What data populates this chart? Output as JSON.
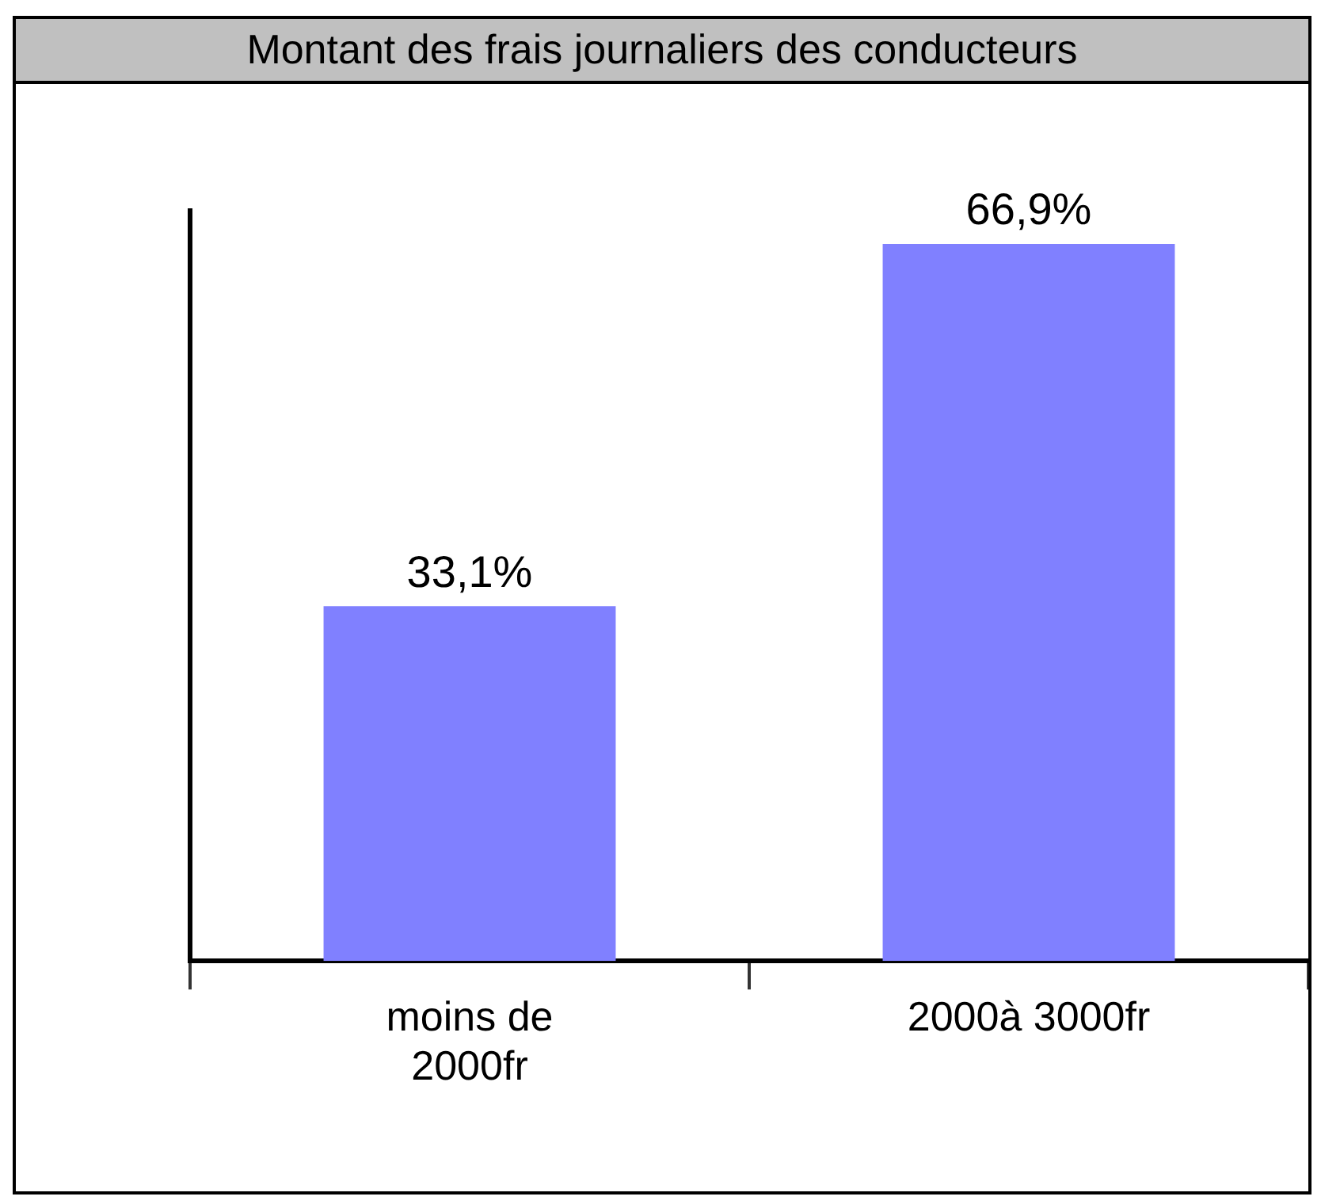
{
  "chart_data": {
    "type": "bar",
    "title": "Montant des frais journaliers des conducteurs",
    "categories": [
      "moins de 2000fr",
      "2000à 3000fr"
    ],
    "values": [
      33.1,
      66.9
    ],
    "value_labels": [
      "33,1%",
      "66,9%"
    ],
    "color": "#8080ff",
    "tick_labels": "x",
    "grid": false,
    "legend": false
  }
}
